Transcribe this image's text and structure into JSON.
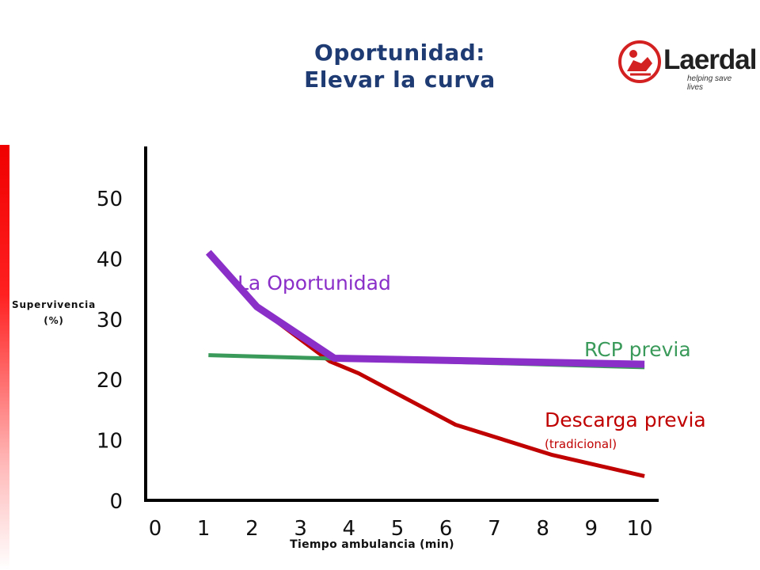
{
  "header": {
    "title_line1": "Oportunidad:",
    "title_line2": "Elevar la curva"
  },
  "logo": {
    "wordmark": "Laerdal",
    "tagline": "helping save lives"
  },
  "chart_data": {
    "type": "line",
    "xlabel": "Tiempo ambulancia (min)",
    "ylabel_line1": "Supervivencia",
    "ylabel_line2": "(%)",
    "xlim": [
      0,
      10
    ],
    "ylim": [
      0,
      50
    ],
    "x_ticks": [
      "0",
      "1",
      "2",
      "3",
      "4",
      "5",
      "6",
      "7",
      "8",
      "9",
      "10"
    ],
    "y_ticks": [
      "0",
      "10",
      "20",
      "30",
      "40",
      "50"
    ],
    "grid": false,
    "series": [
      {
        "name": "Descarga previa",
        "sublabel": "(tradicional)",
        "color": "#c00000",
        "points": [
          [
            1.1,
            41
          ],
          [
            2.1,
            32
          ],
          [
            3.6,
            23
          ],
          [
            4.2,
            21
          ],
          [
            6.2,
            12.5
          ],
          [
            8.2,
            7.5
          ],
          [
            10.1,
            4
          ]
        ]
      },
      {
        "name": "RCP previa",
        "color": "#3a9a5a",
        "points": [
          [
            1.1,
            24
          ],
          [
            10.1,
            22
          ]
        ]
      },
      {
        "name": "La Oportunidad",
        "color": "#8b2fc9",
        "points": [
          [
            1.1,
            41
          ],
          [
            2.1,
            32
          ],
          [
            3.7,
            23.5
          ],
          [
            10.1,
            22.5
          ]
        ]
      }
    ]
  }
}
